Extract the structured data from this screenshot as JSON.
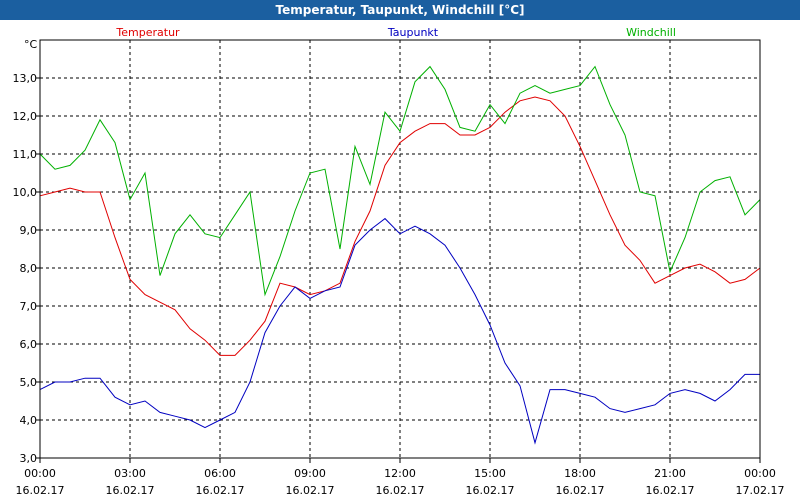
{
  "window": {
    "title": "Temperatur, Taupunkt, Windchill [°C]"
  },
  "chart_data": {
    "type": "line",
    "title": "Temperatur, Taupunkt, Windchill [°C]",
    "ylabel": "°C",
    "ylim": [
      3.0,
      14.0
    ],
    "xlim": [
      "2017-02-16 00:00",
      "2017-02-17 00:00"
    ],
    "grid": true,
    "legend": "top",
    "y_ticks": [
      "3,0",
      "4,0",
      "5,0",
      "6,0",
      "7,0",
      "8,0",
      "9,0",
      "10,0",
      "11,0",
      "12,0",
      "13,0"
    ],
    "x_ticks": [
      {
        "time": "00:00",
        "date": "16.02.17"
      },
      {
        "time": "03:00",
        "date": "16.02.17"
      },
      {
        "time": "06:00",
        "date": "16.02.17"
      },
      {
        "time": "09:00",
        "date": "16.02.17"
      },
      {
        "time": "12:00",
        "date": "16.02.17"
      },
      {
        "time": "15:00",
        "date": "16.02.17"
      },
      {
        "time": "18:00",
        "date": "16.02.17"
      },
      {
        "time": "21:00",
        "date": "16.02.17"
      },
      {
        "time": "00:00",
        "date": "17.02.17"
      }
    ],
    "x": [
      "00:00",
      "00:30",
      "01:00",
      "01:30",
      "02:00",
      "02:30",
      "03:00",
      "03:30",
      "04:00",
      "04:30",
      "05:00",
      "05:30",
      "06:00",
      "06:30",
      "07:00",
      "07:30",
      "08:00",
      "08:30",
      "09:00",
      "09:30",
      "10:00",
      "10:30",
      "11:00",
      "11:30",
      "12:00",
      "12:30",
      "13:00",
      "13:30",
      "14:00",
      "14:30",
      "15:00",
      "15:30",
      "16:00",
      "16:30",
      "17:00",
      "17:30",
      "18:00",
      "18:30",
      "19:00",
      "19:30",
      "20:00",
      "20:30",
      "21:00",
      "21:30",
      "22:00",
      "22:30",
      "23:00",
      "23:30",
      "00:00"
    ],
    "series": [
      {
        "name": "Temperatur",
        "color": "#e00000",
        "values": [
          9.9,
          10.0,
          10.1,
          10.0,
          10.0,
          8.8,
          7.7,
          7.3,
          7.1,
          6.9,
          6.4,
          6.1,
          5.7,
          5.7,
          6.1,
          6.6,
          7.6,
          7.5,
          7.3,
          7.4,
          7.6,
          8.7,
          9.5,
          10.7,
          11.3,
          11.6,
          11.8,
          11.8,
          11.5,
          11.5,
          11.7,
          12.1,
          12.4,
          12.5,
          12.4,
          12.0,
          11.2,
          10.3,
          9.4,
          8.6,
          8.2,
          7.6,
          7.8,
          8.0,
          8.1,
          7.9,
          7.6,
          7.7,
          8.0
        ]
      },
      {
        "name": "Taupunkt",
        "color": "#0000c0",
        "values": [
          4.8,
          5.0,
          5.0,
          5.1,
          5.1,
          4.6,
          4.4,
          4.5,
          4.2,
          4.1,
          4.0,
          3.8,
          4.0,
          4.2,
          5.0,
          6.3,
          7.0,
          7.5,
          7.2,
          7.4,
          7.5,
          8.6,
          9.0,
          9.3,
          8.9,
          9.1,
          8.9,
          8.6,
          8.0,
          7.3,
          6.5,
          5.5,
          4.9,
          3.4,
          4.8,
          4.8,
          4.7,
          4.6,
          4.3,
          4.2,
          4.3,
          4.4,
          4.7,
          4.8,
          4.7,
          4.5,
          4.8,
          5.2,
          5.2
        ]
      },
      {
        "name": "Windchill",
        "color": "#00b000",
        "values": [
          11.0,
          10.6,
          10.7,
          11.1,
          11.9,
          11.3,
          9.8,
          10.5,
          7.8,
          8.9,
          9.4,
          8.9,
          8.8,
          9.4,
          10.0,
          7.3,
          8.3,
          9.5,
          10.5,
          10.6,
          8.5,
          11.2,
          10.2,
          12.1,
          11.6,
          12.9,
          13.3,
          12.7,
          11.7,
          11.6,
          12.3,
          11.8,
          12.6,
          12.8,
          12.6,
          12.7,
          12.8,
          13.3,
          12.3,
          11.5,
          10.0,
          9.9,
          7.9,
          8.8,
          10.0,
          10.3,
          10.4,
          9.4,
          9.8
        ]
      }
    ]
  }
}
